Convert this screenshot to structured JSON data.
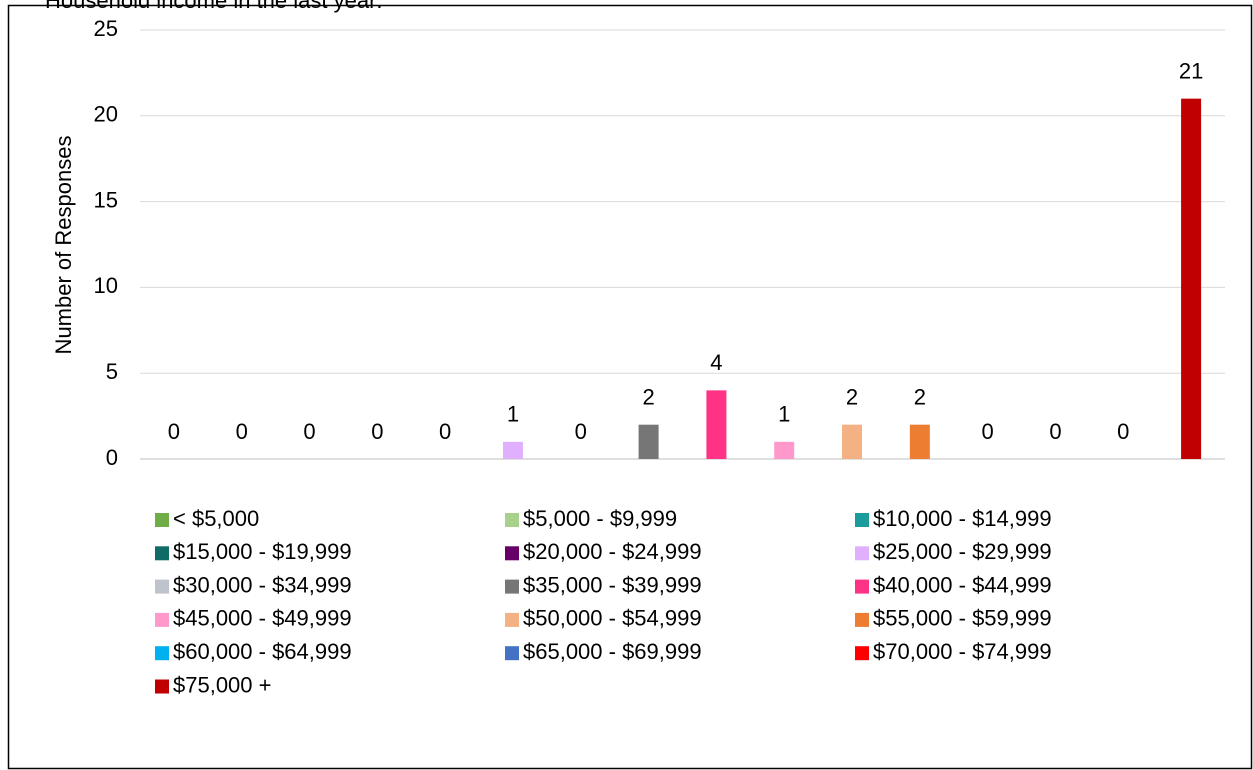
{
  "chart_data": {
    "type": "bar",
    "title": "Household income in the last year:",
    "y_label": "Number of Responses",
    "categories": [
      "< $5,000",
      "$5,000 - $9,999",
      "$10,000 - $14,999",
      "$15,000 - $19,999",
      "$20,000 - $24,999",
      "$25,000 - $29,999",
      "$30,000 - $34,999",
      "$35,000 - $39,999",
      "$40,000 - $44,999",
      "$45,000 - $49,999",
      "$50,000 - $54,999",
      "$55,000 - $59,999",
      "$60,000 - $64,999",
      "$65,000 - $69,999",
      "$70,000 - $74,999",
      "$75,000 +"
    ],
    "values": [
      0,
      0,
      0,
      0,
      0,
      1,
      0,
      2,
      4,
      1,
      2,
      2,
      0,
      0,
      0,
      21
    ],
    "colors": [
      "#70ad47",
      "#a9d18e",
      "#1a9c9c",
      "#0f6b66",
      "#660066",
      "#e0b0ff",
      "#bfc4cc",
      "#767676",
      "#ff3385",
      "#ff99cc",
      "#f4b183",
      "#ed7d31",
      "#00b0f0",
      "#4472c4",
      "#ff0000",
      "#c00000"
    ],
    "ylim": [
      0,
      25
    ],
    "yticks": [
      0,
      5,
      10,
      15,
      20,
      25
    ],
    "grid": true,
    "legend": "bottom"
  }
}
